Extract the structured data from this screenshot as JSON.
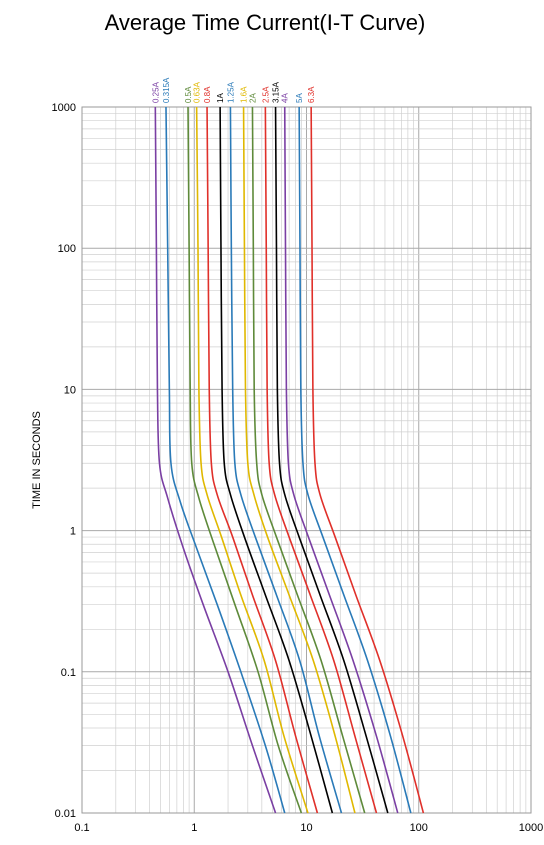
{
  "chart_data": {
    "type": "line",
    "title": "Average Time Current(I-T Curve)",
    "xlabel": "",
    "ylabel": "TIME IN SECONDS",
    "xscale": "log",
    "yscale": "log",
    "xlim": [
      0.1,
      1000
    ],
    "ylim": [
      0.01,
      1000
    ],
    "x_ticks": [
      "0.1",
      "1",
      "10",
      "100",
      "1000"
    ],
    "y_ticks": [
      "1000",
      "100",
      "10",
      "1",
      "0.1",
      "0.01"
    ],
    "grid": true,
    "legend": "series labels along top of plot",
    "series": [
      {
        "name": "0.25A",
        "color": "#7a3fa3",
        "points": [
          [
            0.45,
            1000
          ],
          [
            0.46,
            100
          ],
          [
            0.47,
            10
          ],
          [
            0.49,
            3
          ],
          [
            0.58,
            1.7
          ],
          [
            0.8,
            0.75
          ],
          [
            1.2,
            0.3
          ],
          [
            2.0,
            0.1
          ],
          [
            3.3,
            0.03
          ],
          [
            5.3,
            0.01
          ]
        ]
      },
      {
        "name": "0.315A",
        "color": "#2a7ab8",
        "points": [
          [
            0.56,
            1000
          ],
          [
            0.58,
            100
          ],
          [
            0.6,
            10
          ],
          [
            0.62,
            3
          ],
          [
            0.75,
            1.6
          ],
          [
            1.05,
            0.75
          ],
          [
            1.6,
            0.3
          ],
          [
            2.6,
            0.1
          ],
          [
            4.3,
            0.03
          ],
          [
            6.4,
            0.01
          ]
        ]
      },
      {
        "name": "0.5A",
        "color": "#5e8a3a",
        "points": [
          [
            0.88,
            1000
          ],
          [
            0.9,
            100
          ],
          [
            0.92,
            10
          ],
          [
            0.95,
            3
          ],
          [
            1.1,
            1.7
          ],
          [
            1.5,
            0.8
          ],
          [
            2.3,
            0.3
          ],
          [
            3.7,
            0.1
          ],
          [
            5.6,
            0.03
          ],
          [
            9.0,
            0.01
          ]
        ]
      },
      {
        "name": "0.63A",
        "color": "#e0b800",
        "points": [
          [
            1.05,
            1000
          ],
          [
            1.08,
            100
          ],
          [
            1.1,
            10
          ],
          [
            1.15,
            3
          ],
          [
            1.3,
            1.8
          ],
          [
            1.75,
            0.9
          ],
          [
            2.6,
            0.35
          ],
          [
            4.2,
            0.12
          ],
          [
            6.3,
            0.035
          ],
          [
            10.3,
            0.01
          ]
        ]
      },
      {
        "name": "0.8A",
        "color": "#e0302a",
        "points": [
          [
            1.3,
            1000
          ],
          [
            1.33,
            100
          ],
          [
            1.36,
            10
          ],
          [
            1.42,
            3
          ],
          [
            1.6,
            1.8
          ],
          [
            2.2,
            0.9
          ],
          [
            3.3,
            0.35
          ],
          [
            5.3,
            0.12
          ],
          [
            8.0,
            0.035
          ],
          [
            12.5,
            0.01
          ]
        ]
      },
      {
        "name": "1A",
        "color": "#000000",
        "points": [
          [
            1.7,
            1000
          ],
          [
            1.73,
            100
          ],
          [
            1.77,
            10
          ],
          [
            1.85,
            3
          ],
          [
            2.1,
            1.8
          ],
          [
            2.8,
            0.9
          ],
          [
            4.3,
            0.35
          ],
          [
            7.0,
            0.12
          ],
          [
            11,
            0.035
          ],
          [
            17,
            0.01
          ]
        ]
      },
      {
        "name": "1.25A",
        "color": "#2a7ab8",
        "points": [
          [
            2.1,
            1000
          ],
          [
            2.14,
            100
          ],
          [
            2.2,
            10
          ],
          [
            2.3,
            3
          ],
          [
            2.6,
            1.8
          ],
          [
            3.5,
            0.9
          ],
          [
            5.4,
            0.35
          ],
          [
            8.7,
            0.12
          ],
          [
            13,
            0.035
          ],
          [
            20.5,
            0.01
          ]
        ]
      },
      {
        "name": "1.6A",
        "color": "#e0b800",
        "points": [
          [
            2.75,
            1000
          ],
          [
            2.8,
            100
          ],
          [
            2.86,
            10
          ],
          [
            3.0,
            3
          ],
          [
            3.4,
            1.8
          ],
          [
            4.5,
            0.9
          ],
          [
            7.0,
            0.35
          ],
          [
            11.5,
            0.12
          ],
          [
            18,
            0.035
          ],
          [
            27,
            0.01
          ]
        ]
      },
      {
        "name": "2A",
        "color": "#5e8a3a",
        "points": [
          [
            3.3,
            1000
          ],
          [
            3.36,
            100
          ],
          [
            3.42,
            10
          ],
          [
            3.6,
            3
          ],
          [
            4.0,
            1.8
          ],
          [
            5.4,
            0.9
          ],
          [
            8.3,
            0.35
          ],
          [
            13.5,
            0.12
          ],
          [
            21,
            0.035
          ],
          [
            33,
            0.01
          ]
        ]
      },
      {
        "name": "2.5A",
        "color": "#e0302a",
        "points": [
          [
            4.3,
            1000
          ],
          [
            4.38,
            100
          ],
          [
            4.46,
            10
          ],
          [
            4.65,
            3
          ],
          [
            5.2,
            1.8
          ],
          [
            7.0,
            0.9
          ],
          [
            10.8,
            0.35
          ],
          [
            17.5,
            0.12
          ],
          [
            27,
            0.035
          ],
          [
            42,
            0.01
          ]
        ]
      },
      {
        "name": "3.15A",
        "color": "#000000",
        "points": [
          [
            5.3,
            1000
          ],
          [
            5.4,
            100
          ],
          [
            5.5,
            10
          ],
          [
            5.75,
            3
          ],
          [
            6.4,
            1.8
          ],
          [
            8.6,
            0.9
          ],
          [
            13.2,
            0.35
          ],
          [
            21.5,
            0.12
          ],
          [
            34,
            0.035
          ],
          [
            53,
            0.01
          ]
        ]
      },
      {
        "name": "4A",
        "color": "#7a3fa3",
        "points": [
          [
            6.4,
            1000
          ],
          [
            6.5,
            100
          ],
          [
            6.62,
            10
          ],
          [
            6.9,
            3
          ],
          [
            7.7,
            1.8
          ],
          [
            10.4,
            0.9
          ],
          [
            16,
            0.35
          ],
          [
            26,
            0.12
          ],
          [
            42,
            0.035
          ],
          [
            65,
            0.01
          ]
        ]
      },
      {
        "name": "5A",
        "color": "#2a7ab8",
        "points": [
          [
            8.6,
            1000
          ],
          [
            8.75,
            100
          ],
          [
            8.9,
            10
          ],
          [
            9.3,
            3
          ],
          [
            10.3,
            1.8
          ],
          [
            14,
            0.9
          ],
          [
            21.5,
            0.35
          ],
          [
            35,
            0.12
          ],
          [
            56,
            0.035
          ],
          [
            85,
            0.01
          ]
        ]
      },
      {
        "name": "6.3A",
        "color": "#e0302a",
        "points": [
          [
            11,
            1000
          ],
          [
            11.2,
            100
          ],
          [
            11.4,
            10
          ],
          [
            11.9,
            3
          ],
          [
            13.2,
            1.8
          ],
          [
            18,
            0.9
          ],
          [
            27.5,
            0.35
          ],
          [
            45,
            0.12
          ],
          [
            72,
            0.035
          ],
          [
            110,
            0.01
          ]
        ]
      }
    ]
  }
}
